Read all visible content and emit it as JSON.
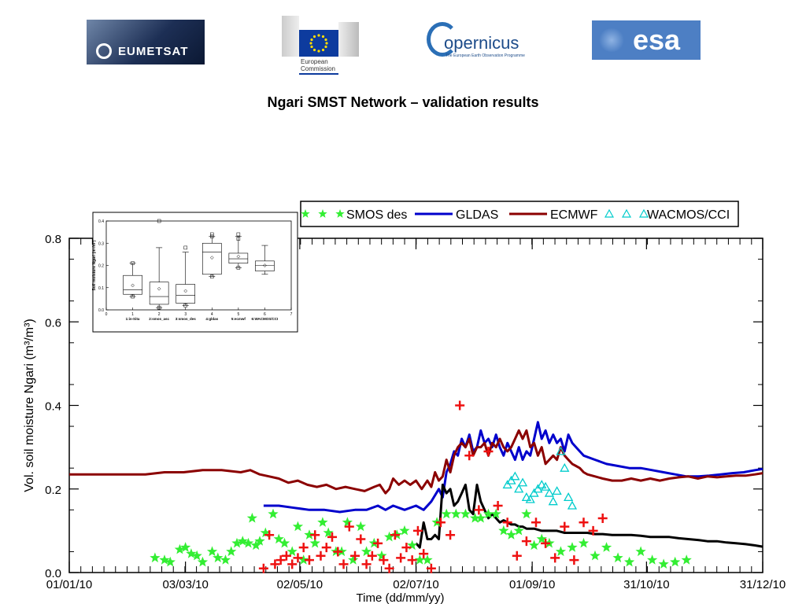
{
  "logos": {
    "eumetsat": "EUMETSAT",
    "ec_line1": "European",
    "ec_line2": "Commission",
    "copernicus": "opernicus",
    "copernicus_sub": "The European Earth Observation Programme",
    "esa": "esa"
  },
  "page": {
    "title": "Ngari SMST Network – validation results"
  },
  "chart_data": [
    {
      "type": "line",
      "title": "",
      "xlabel": "Time (dd/mm/yy)",
      "ylabel": "Vol. soil moisture Ngari (m³/m³)",
      "xlim": [
        "01/01/10",
        "31/12/10"
      ],
      "ylim": [
        0.0,
        0.8
      ],
      "x_ticks": [
        "01/01/10",
        "03/03/10",
        "02/05/10",
        "02/07/10",
        "01/09/10",
        "31/10/10",
        "31/12/10"
      ],
      "y_ticks": [
        "0.0",
        "0.2",
        "0.4",
        "0.6",
        "0.8"
      ],
      "legend_position": "top-right",
      "legend": [
        "SMOS des",
        "GLDAS",
        "ECMWF",
        "WACMOS/CCI"
      ],
      "series": [
        {
          "name": "GLDAS",
          "color": "#0000cc",
          "mark": "line",
          "x_day": [
            102,
            110,
            118,
            126,
            134,
            142,
            150,
            156,
            162,
            166,
            170,
            176,
            182,
            186,
            190,
            194,
            196,
            198,
            200,
            202,
            204,
            206,
            208,
            210,
            212,
            214,
            216,
            218,
            220,
            222,
            224,
            226,
            228,
            230,
            232,
            234,
            236,
            238,
            240,
            242,
            244,
            246,
            248,
            250,
            252,
            254,
            256,
            258,
            260,
            262,
            264,
            266,
            268,
            270,
            276,
            282,
            288,
            294,
            300,
            306,
            312,
            318,
            324,
            330,
            336,
            342,
            348,
            354,
            360,
            364
          ],
          "values": [
            0.16,
            0.16,
            0.155,
            0.15,
            0.15,
            0.145,
            0.15,
            0.15,
            0.16,
            0.15,
            0.16,
            0.15,
            0.16,
            0.15,
            0.17,
            0.2,
            0.18,
            0.24,
            0.26,
            0.29,
            0.28,
            0.32,
            0.3,
            0.33,
            0.29,
            0.3,
            0.34,
            0.31,
            0.32,
            0.3,
            0.33,
            0.3,
            0.28,
            0.31,
            0.29,
            0.27,
            0.3,
            0.27,
            0.29,
            0.28,
            0.32,
            0.36,
            0.32,
            0.34,
            0.31,
            0.33,
            0.31,
            0.32,
            0.29,
            0.33,
            0.31,
            0.3,
            0.29,
            0.28,
            0.27,
            0.26,
            0.255,
            0.25,
            0.25,
            0.245,
            0.24,
            0.235,
            0.23,
            0.23,
            0.232,
            0.235,
            0.238,
            0.24,
            0.245,
            0.248
          ]
        },
        {
          "name": "ECMWF",
          "color": "#8b0000",
          "mark": "line",
          "x_day": [
            0,
            10,
            20,
            30,
            40,
            50,
            60,
            70,
            80,
            90,
            95,
            100,
            105,
            110,
            115,
            120,
            125,
            130,
            135,
            140,
            145,
            150,
            155,
            160,
            163,
            166,
            168,
            170,
            173,
            176,
            179,
            182,
            185,
            188,
            190,
            192,
            194,
            196,
            198,
            200,
            202,
            204,
            206,
            208,
            210,
            212,
            214,
            216,
            218,
            220,
            222,
            224,
            226,
            228,
            230,
            232,
            234,
            236,
            238,
            240,
            242,
            244,
            246,
            248,
            250,
            252,
            254,
            256,
            258,
            260,
            262,
            264,
            266,
            268,
            270,
            272,
            276,
            280,
            285,
            290,
            295,
            300,
            305,
            310,
            315,
            320,
            325,
            330,
            335,
            340,
            345,
            350,
            355,
            360,
            364
          ],
          "values": [
            0.235,
            0.235,
            0.235,
            0.235,
            0.235,
            0.24,
            0.24,
            0.245,
            0.245,
            0.24,
            0.245,
            0.235,
            0.23,
            0.225,
            0.215,
            0.22,
            0.21,
            0.205,
            0.21,
            0.2,
            0.205,
            0.2,
            0.195,
            0.205,
            0.21,
            0.19,
            0.2,
            0.225,
            0.21,
            0.22,
            0.21,
            0.22,
            0.2,
            0.22,
            0.205,
            0.24,
            0.22,
            0.23,
            0.27,
            0.24,
            0.28,
            0.3,
            0.31,
            0.3,
            0.32,
            0.28,
            0.3,
            0.3,
            0.31,
            0.28,
            0.31,
            0.3,
            0.32,
            0.3,
            0.29,
            0.3,
            0.32,
            0.34,
            0.32,
            0.34,
            0.3,
            0.31,
            0.28,
            0.3,
            0.26,
            0.27,
            0.28,
            0.27,
            0.3,
            0.28,
            0.27,
            0.26,
            0.255,
            0.25,
            0.24,
            0.235,
            0.23,
            0.225,
            0.22,
            0.22,
            0.225,
            0.22,
            0.225,
            0.22,
            0.225,
            0.228,
            0.23,
            0.225,
            0.23,
            0.228,
            0.23,
            0.232,
            0.232,
            0.235,
            0.238
          ]
        },
        {
          "name": "in-situ",
          "color": "#000000",
          "mark": "line",
          "x_day": [
            182,
            184,
            186,
            188,
            190,
            192,
            194,
            196,
            198,
            200,
            202,
            204,
            206,
            208,
            210,
            212,
            214,
            216,
            218,
            220,
            222,
            224,
            226,
            228,
            230,
            232,
            234,
            236,
            238,
            240,
            244,
            248,
            252,
            256,
            260,
            264,
            268,
            272,
            276,
            280,
            285,
            290,
            295,
            300,
            305,
            310,
            315,
            320,
            325,
            330,
            335,
            340,
            345,
            350,
            355,
            360,
            364
          ],
          "values": [
            0.07,
            0.06,
            0.12,
            0.08,
            0.08,
            0.09,
            0.08,
            0.21,
            0.19,
            0.2,
            0.16,
            0.17,
            0.19,
            0.21,
            0.15,
            0.14,
            0.21,
            0.17,
            0.15,
            0.13,
            0.14,
            0.13,
            0.12,
            0.125,
            0.12,
            0.115,
            0.115,
            0.11,
            0.11,
            0.105,
            0.105,
            0.1,
            0.1,
            0.1,
            0.095,
            0.095,
            0.095,
            0.095,
            0.092,
            0.092,
            0.09,
            0.09,
            0.09,
            0.088,
            0.085,
            0.085,
            0.085,
            0.082,
            0.08,
            0.078,
            0.075,
            0.075,
            0.072,
            0.07,
            0.068,
            0.065,
            0.062
          ]
        },
        {
          "name": "SMOS des",
          "color": "#33ee33",
          "mark": "star",
          "x_day": [
            45,
            50,
            53,
            58,
            61,
            64,
            67,
            70,
            75,
            78,
            82,
            85,
            88,
            91,
            94,
            96,
            98,
            100,
            103,
            107,
            110,
            113,
            117,
            120,
            123,
            126,
            129,
            133,
            136,
            140,
            143,
            146,
            149,
            153,
            156,
            160,
            164,
            168,
            172,
            176,
            180,
            184,
            188,
            193,
            198,
            203,
            208,
            213,
            216,
            220,
            224,
            228,
            232,
            236,
            240,
            244,
            248,
            252,
            258,
            264,
            270,
            276,
            282,
            288,
            294,
            300,
            306,
            312,
            318,
            324
          ],
          "values": [
            0.035,
            0.03,
            0.025,
            0.055,
            0.06,
            0.045,
            0.04,
            0.025,
            0.05,
            0.035,
            0.03,
            0.05,
            0.07,
            0.075,
            0.07,
            0.13,
            0.065,
            0.075,
            0.095,
            0.14,
            0.08,
            0.07,
            0.05,
            0.11,
            0.03,
            0.09,
            0.07,
            0.12,
            0.095,
            0.05,
            0.05,
            0.12,
            0.03,
            0.11,
            0.05,
            0.07,
            0.04,
            0.085,
            0.09,
            0.1,
            0.065,
            0.03,
            0.03,
            0.12,
            0.14,
            0.14,
            0.14,
            0.13,
            0.13,
            0.14,
            0.14,
            0.1,
            0.09,
            0.1,
            0.14,
            0.065,
            0.08,
            0.07,
            0.05,
            0.06,
            0.07,
            0.04,
            0.06,
            0.035,
            0.025,
            0.05,
            0.03,
            0.02,
            0.025,
            0.03
          ]
        },
        {
          "name": "SMOS asc",
          "color": "#ee1111",
          "mark": "plus",
          "x_day": [
            102,
            105,
            108,
            111,
            114,
            117,
            120,
            123,
            126,
            129,
            132,
            135,
            138,
            141,
            144,
            147,
            150,
            153,
            156,
            159,
            162,
            165,
            168,
            171,
            174,
            177,
            180,
            183,
            186,
            190,
            195,
            200,
            205,
            210,
            215,
            220,
            225,
            230,
            235,
            240,
            245,
            250,
            255,
            260,
            265,
            270,
            275,
            280
          ],
          "values": [
            0.01,
            0.09,
            0.02,
            0.03,
            0.04,
            0.02,
            0.035,
            0.06,
            0.03,
            0.09,
            0.04,
            0.06,
            0.085,
            0.05,
            0.02,
            0.11,
            0.04,
            0.08,
            0.02,
            0.04,
            0.07,
            0.03,
            0.01,
            0.09,
            0.035,
            0.06,
            0.03,
            0.1,
            0.045,
            0.01,
            0.12,
            0.09,
            0.4,
            0.28,
            0.15,
            0.29,
            0.16,
            0.12,
            0.04,
            0.075,
            0.12,
            0.07,
            0.035,
            0.11,
            0.03,
            0.12,
            0.1,
            0.13
          ]
        },
        {
          "name": "WACMOS/CCI",
          "color": "#00cccc",
          "mark": "triangle",
          "x_day": [
            230,
            232,
            234,
            236,
            238,
            240,
            242,
            244,
            246,
            248,
            250,
            252,
            254,
            256,
            258,
            260,
            262,
            264
          ],
          "values": [
            0.21,
            0.22,
            0.23,
            0.2,
            0.215,
            0.18,
            0.175,
            0.19,
            0.2,
            0.21,
            0.205,
            0.19,
            0.17,
            0.195,
            0.29,
            0.25,
            0.18,
            0.16
          ]
        }
      ]
    },
    {
      "type": "box",
      "title": "",
      "xlabel": "",
      "ylabel": "Soil moisture Ngari (m³/m³)",
      "ylim": [
        0.0,
        0.4
      ],
      "y_ticks": [
        "0.0",
        "0.1",
        "0.2",
        "0.3",
        "0.4"
      ],
      "x_ticks": [
        "0",
        "1",
        "2",
        "3",
        "4",
        "5",
        "6",
        "7"
      ],
      "category_labels": [
        "1:in-Situ",
        "2:smos_asc",
        "3:smos_des",
        "4:gldas",
        "5:ecmwf",
        "6:WACMOS/CCI"
      ],
      "boxes": [
        {
          "pos": 1,
          "min": 0.06,
          "q1": 0.07,
          "median": 0.09,
          "q3": 0.155,
          "max": 0.21,
          "mean": 0.11,
          "outliers": [
            0.21,
            0.06
          ]
        },
        {
          "pos": 2,
          "min": 0.01,
          "q1": 0.025,
          "median": 0.06,
          "q3": 0.125,
          "max": 0.28,
          "mean": 0.095,
          "outliers": [
            0.4,
            0.01
          ]
        },
        {
          "pos": 3,
          "min": 0.02,
          "q1": 0.03,
          "median": 0.065,
          "q3": 0.115,
          "max": 0.26,
          "mean": 0.085,
          "outliers": [
            0.28,
            0.02
          ]
        },
        {
          "pos": 4,
          "min": 0.15,
          "q1": 0.16,
          "median": 0.26,
          "q3": 0.3,
          "max": 0.33,
          "mean": 0.235,
          "outliers": [
            0.34,
            0.33,
            0.15
          ]
        },
        {
          "pos": 5,
          "min": 0.19,
          "q1": 0.21,
          "median": 0.23,
          "q3": 0.255,
          "max": 0.33,
          "mean": 0.24,
          "outliers": [
            0.34,
            0.32,
            0.19
          ]
        },
        {
          "pos": 6,
          "min": 0.16,
          "q1": 0.175,
          "median": 0.2,
          "q3": 0.22,
          "max": 0.29,
          "mean": 0.2,
          "outliers": []
        }
      ]
    }
  ]
}
